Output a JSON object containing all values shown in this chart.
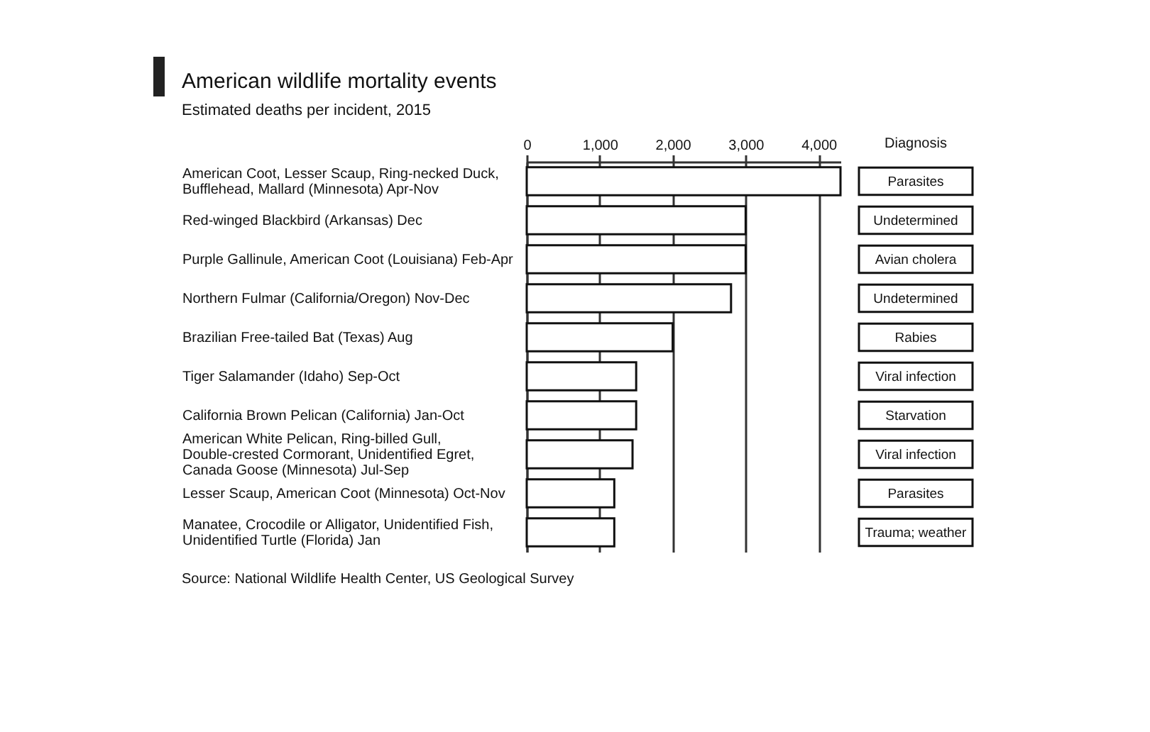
{
  "chart_data": {
    "type": "bar",
    "orientation": "horizontal",
    "title": "American wildlife mortality events",
    "subtitle": "Estimated deaths per incident, 2015",
    "categories": [
      "American Coot, Lesser Scaup, Ring-necked Duck, Bufflehead, Mallard (Minnesota) Apr-Nov",
      "Red-winged Blackbird (Arkansas) Dec",
      "Purple Gallinule, American Coot (Louisiana) Feb-Apr",
      "Northern Fulmar (California/Oregon) Nov-Dec",
      "Brazilian Free-tailed Bat (Texas) Aug",
      "Tiger Salamander (Idaho) Sep-Oct",
      "California Brown Pelican (California) Jan-Oct",
      "American White Pelican, Ring-billed Gull, Double-crested Cormorant, Unidentified Egret, Canada Goose (Minnesota) Jul-Sep",
      "Lesser Scaup, American Coot (Minnesota) Oct-Nov",
      "Manatee, Crocodile or Alligator, Unidentified Fish, Unidentified Turtle (Florida) Jan"
    ],
    "values": [
      4300,
      3000,
      3000,
      2800,
      2000,
      1500,
      1500,
      1450,
      1200,
      1200
    ],
    "color": "#ffffff",
    "xlim": [
      0,
      4300
    ],
    "xticks": [
      0,
      {
        "value": 1000,
        "label": "1,000"
      },
      {
        "value": 2000,
        "label": "2,000"
      },
      {
        "value": 3000,
        "label": "3,000"
      },
      {
        "value": 4000,
        "label": "4,000"
      }
    ],
    "grid": "x",
    "y2label": "Diagnosis",
    "y2_categories": [
      "Parasites",
      "Undetermined",
      "Avian cholera",
      "Undetermined",
      "Rabies",
      "Viral infection",
      "Starvation",
      "Viral infection",
      "Parasites",
      "Trauma; weather"
    ],
    "annotations": [
      "Source: National Wildlife Health Center, US Geological Survey"
    ]
  }
}
